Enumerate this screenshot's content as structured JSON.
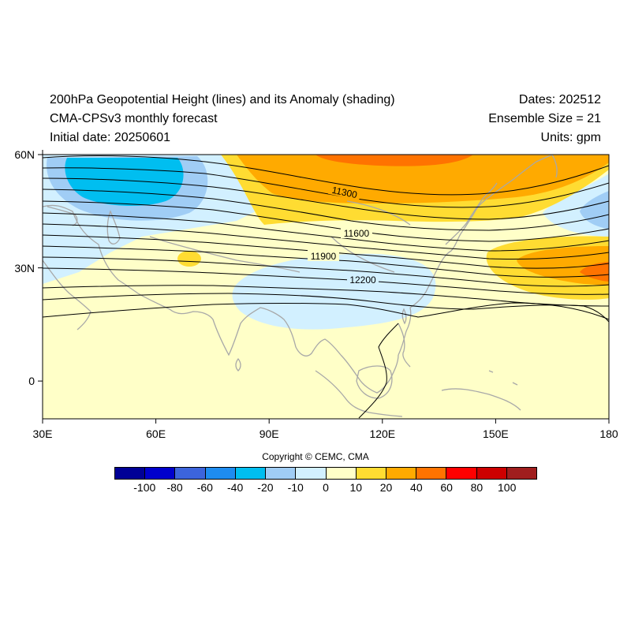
{
  "header": {
    "title": "200hPa Geopotential Height (lines) and its Anomaly (shading)",
    "subtitle": "CMA-CPSv3 monthly forecast",
    "initial_date": "Initial date: 20250601",
    "dates": "Dates: 202512",
    "ensemble": "Ensemble Size = 21",
    "units": "Units: gpm"
  },
  "map": {
    "lon_range": [
      30,
      180
    ],
    "lat_range": [
      -10,
      60
    ],
    "x_ticks": [
      {
        "value": 30,
        "label": "30E"
      },
      {
        "value": 60,
        "label": "60E"
      },
      {
        "value": 90,
        "label": "90E"
      },
      {
        "value": 120,
        "label": "120E"
      },
      {
        "value": 150,
        "label": "150E"
      },
      {
        "value": 180,
        "label": "180"
      }
    ],
    "y_ticks": [
      {
        "value": 60,
        "label": "60N"
      },
      {
        "value": 30,
        "label": "30N"
      },
      {
        "value": 0,
        "label": "0"
      }
    ],
    "contour_labels": [
      "11300",
      "11600",
      "11900",
      "12200"
    ],
    "coastline_color": "#a8a8a8",
    "contour_color": "#000000"
  },
  "copyright": "Copyright © CEMC, CMA",
  "colorbar": {
    "colors": [
      "#000096",
      "#0000cd",
      "#3c64dc",
      "#1e8cf0",
      "#00bef0",
      "#a0cdf5",
      "#d2f0ff",
      "#ffffc8",
      "#ffdc32",
      "#ffaa00",
      "#ff7300",
      "#ff0000",
      "#cd0000",
      "#a01e1e"
    ],
    "labels": [
      "-100",
      "-80",
      "-60",
      "-40",
      "-20",
      "-10",
      "0",
      "10",
      "20",
      "40",
      "60",
      "80",
      "100"
    ]
  }
}
